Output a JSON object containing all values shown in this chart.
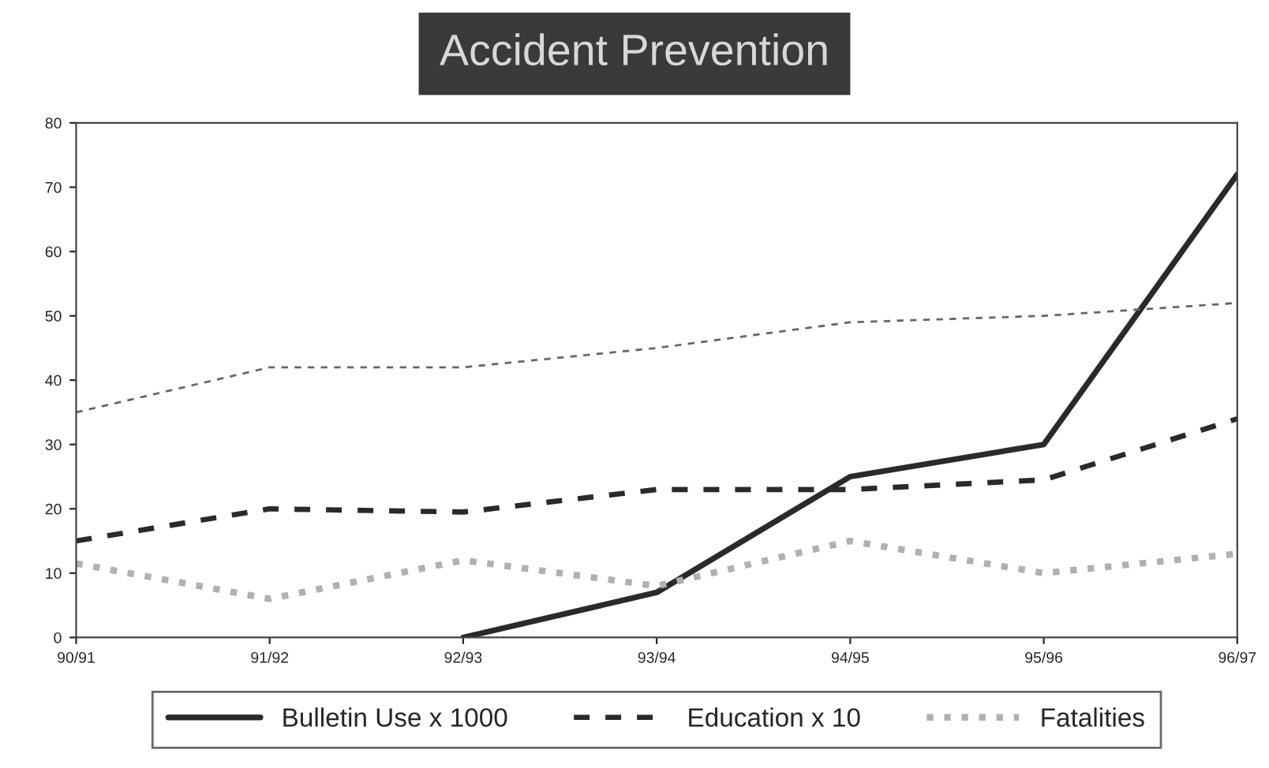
{
  "chart_data": {
    "type": "line",
    "title": "Accident Prevention",
    "categories": [
      "90/91",
      "91/92",
      "92/93",
      "93/94",
      "94/95",
      "95/96",
      "96/97"
    ],
    "series": [
      {
        "name": "Bulletin Use x 1000",
        "color": "#2a2a2a",
        "line_style": "solid",
        "values": [
          null,
          null,
          0,
          7,
          25,
          30,
          72
        ]
      },
      {
        "name": "Education x 10",
        "color": "#2a2a2a",
        "line_style": "dashed",
        "values": [
          15,
          20,
          19.5,
          23,
          23,
          24.5,
          34
        ]
      },
      {
        "color": "#666666",
        "line_style": "dashed",
        "values": [
          35,
          42,
          42,
          45,
          49,
          50,
          52
        ]
      },
      {
        "name": "Fatalities",
        "color": "#b0b0b0",
        "line_style": "dotted",
        "values": [
          11.5,
          6,
          12,
          8,
          15,
          10,
          13
        ]
      }
    ],
    "ylim": [
      0,
      80
    ],
    "yticks": [
      0,
      10,
      20,
      30,
      40,
      50,
      60,
      70,
      80
    ],
    "grid": false,
    "legend": "bottom",
    "marker": "none"
  }
}
